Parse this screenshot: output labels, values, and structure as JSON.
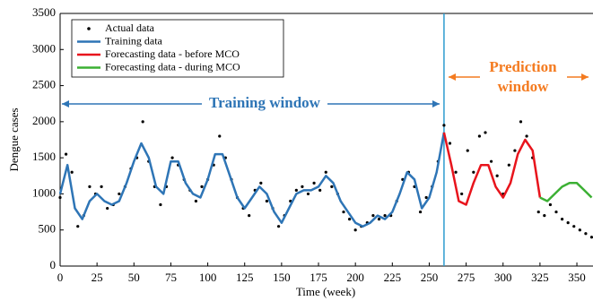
{
  "chart_data": {
    "type": "line",
    "xlabel": "Time (week)",
    "ylabel": "Dengue cases",
    "xlim": [
      0,
      360
    ],
    "ylim": [
      0,
      3500
    ],
    "xticks": [
      0,
      25,
      50,
      75,
      100,
      125,
      150,
      175,
      200,
      225,
      250,
      275,
      300,
      325,
      350
    ],
    "yticks": [
      0,
      500,
      1000,
      1500,
      2000,
      2500,
      3000,
      3500
    ],
    "legend": "upper left",
    "series": [
      {
        "name": "Actual data",
        "color": "#000000",
        "style": "scatter",
        "x": [
          0,
          4,
          8,
          12,
          16,
          20,
          24,
          28,
          32,
          36,
          40,
          44,
          48,
          52,
          56,
          60,
          64,
          68,
          72,
          76,
          80,
          84,
          88,
          92,
          96,
          100,
          104,
          108,
          112,
          116,
          120,
          124,
          128,
          132,
          136,
          140,
          144,
          148,
          152,
          156,
          160,
          164,
          168,
          172,
          176,
          180,
          184,
          188,
          192,
          196,
          200,
          204,
          208,
          212,
          216,
          220,
          224,
          228,
          232,
          236,
          240,
          244,
          248,
          252,
          256,
          260,
          264,
          268,
          272,
          276,
          280,
          284,
          288,
          292,
          296,
          300,
          304,
          308,
          312,
          316,
          320,
          324,
          328,
          332,
          336,
          340,
          344,
          348,
          352,
          356,
          360
        ],
        "values": [
          950,
          1550,
          1300,
          550,
          700,
          1100,
          1000,
          1100,
          800,
          850,
          1000,
          1100,
          1350,
          1500,
          2000,
          1450,
          1100,
          850,
          1100,
          1500,
          1400,
          1200,
          1050,
          900,
          1100,
          1200,
          1400,
          1800,
          1500,
          1200,
          950,
          800,
          700,
          1050,
          1150,
          900,
          800,
          550,
          700,
          900,
          1050,
          1100,
          1000,
          1150,
          1050,
          1300,
          1100,
          1000,
          750,
          650,
          500,
          550,
          600,
          700,
          650,
          700,
          700,
          900,
          1200,
          1300,
          1100,
          750,
          950,
          1100,
          1450,
          1950,
          1700,
          1300,
          1000,
          1600,
          1300,
          1800,
          1850,
          1450,
          1250,
          1000,
          1400,
          1600,
          2000,
          1800,
          1500,
          750,
          700,
          850,
          750,
          650,
          600,
          550,
          500,
          450,
          400
        ]
      },
      {
        "name": "Training data",
        "color": "#2e75b6",
        "style": "line",
        "x": [
          0,
          5,
          10,
          15,
          20,
          25,
          30,
          35,
          40,
          45,
          50,
          55,
          60,
          65,
          70,
          75,
          80,
          85,
          90,
          95,
          100,
          105,
          110,
          115,
          120,
          125,
          130,
          135,
          140,
          145,
          150,
          155,
          160,
          165,
          170,
          175,
          180,
          185,
          190,
          195,
          200,
          205,
          210,
          215,
          220,
          225,
          230,
          235,
          240,
          245,
          250,
          255,
          260
        ],
        "values": [
          1000,
          1400,
          800,
          650,
          900,
          1000,
          900,
          850,
          900,
          1150,
          1450,
          1700,
          1500,
          1100,
          1000,
          1450,
          1450,
          1150,
          1000,
          950,
          1200,
          1550,
          1550,
          1250,
          950,
          800,
          950,
          1100,
          1000,
          750,
          600,
          800,
          1000,
          1050,
          1050,
          1100,
          1250,
          1150,
          900,
          750,
          600,
          550,
          600,
          700,
          650,
          750,
          1000,
          1300,
          1200,
          800,
          950,
          1300,
          1850
        ]
      },
      {
        "name": "Forecasting data - before MCO",
        "color": "#e8141c",
        "style": "line",
        "x": [
          260,
          265,
          270,
          275,
          280,
          285,
          290,
          295,
          300,
          305,
          310,
          315,
          320,
          325
        ],
        "values": [
          1850,
          1400,
          900,
          850,
          1150,
          1400,
          1400,
          1100,
          950,
          1150,
          1550,
          1750,
          1600,
          950
        ]
      },
      {
        "name": "Forecasting data - during MCO",
        "color": "#3cb034",
        "style": "line",
        "x": [
          325,
          330,
          335,
          340,
          345,
          350,
          355,
          360
        ],
        "values": [
          950,
          900,
          1000,
          1100,
          1150,
          1150,
          1050,
          950
        ]
      }
    ],
    "vline": {
      "x": 260,
      "color": "#2e9ccf"
    },
    "annotations": [
      {
        "text_lines": [
          "Training window"
        ],
        "color": "#2e75b6"
      },
      {
        "text_lines": [
          "Prediction",
          "window"
        ],
        "color": "#f47b20"
      }
    ]
  }
}
